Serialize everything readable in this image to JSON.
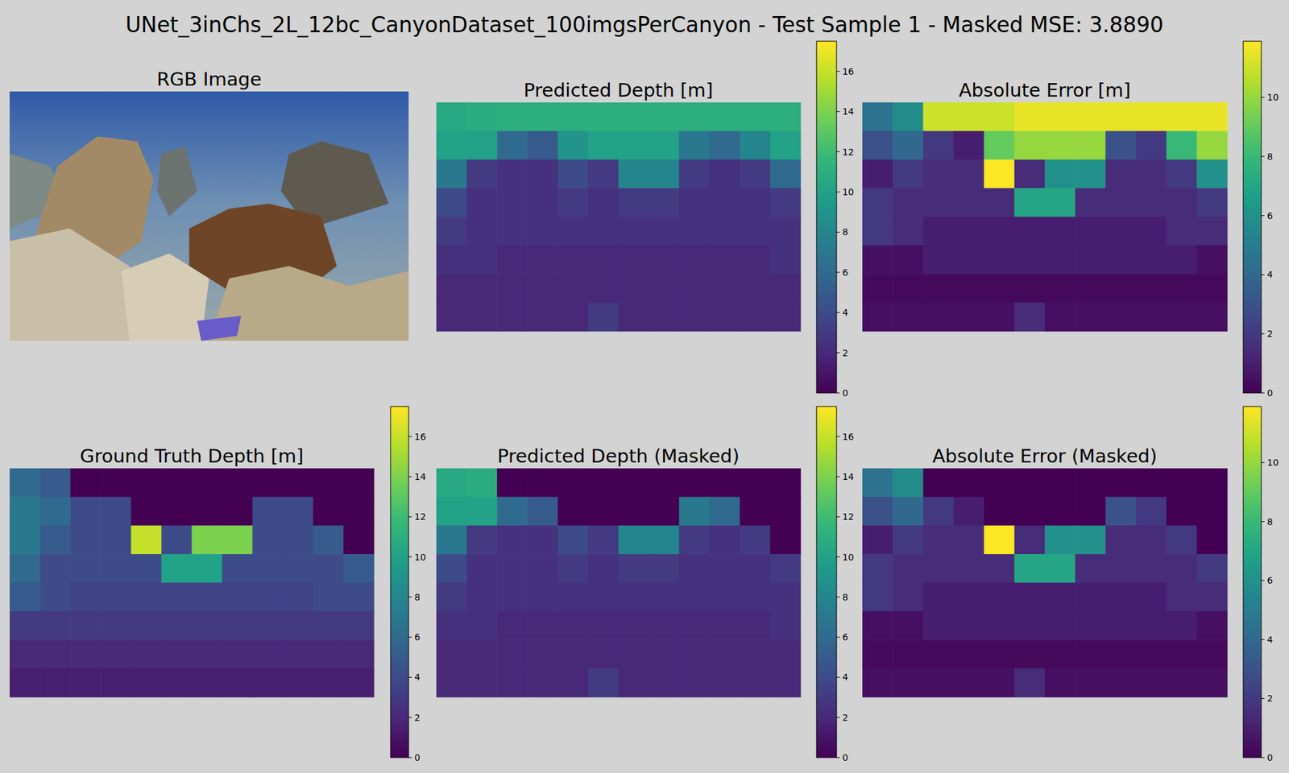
{
  "chart_data": {
    "type": "image_grid",
    "title": "UNet_3inChs_2L_12bc_CanyonDataset_100imgsPerCanyon - Test Sample 1 - Masked MSE: 3.8890",
    "panels": [
      {
        "type": "image",
        "title": "RGB Image"
      },
      {
        "type": "heatmap",
        "title": "Predicted Depth [m]",
        "cells": [
          [
            10.5,
            10.8,
            11,
            11,
            11,
            11,
            11,
            11,
            11,
            11,
            11,
            11
          ],
          [
            10,
            10,
            6,
            5,
            9,
            10,
            10,
            10,
            7,
            6,
            8,
            10
          ],
          [
            7,
            3,
            2.5,
            2.5,
            4,
            3,
            8,
            8,
            3,
            2.5,
            3,
            6
          ],
          [
            4,
            2.5,
            2.5,
            2.5,
            3,
            2.5,
            3,
            3,
            2.5,
            2.5,
            2.5,
            3
          ],
          [
            3,
            2.5,
            2.5,
            2.5,
            2.5,
            2.5,
            2.5,
            2.5,
            2.5,
            2.5,
            2.5,
            2.5
          ],
          [
            2.5,
            2.5,
            2,
            2,
            2,
            2,
            2,
            2,
            2,
            2,
            2,
            2.5
          ],
          [
            2,
            2,
            2,
            2,
            2,
            2,
            2,
            2,
            2,
            2,
            2,
            2
          ],
          [
            2,
            2,
            2,
            2,
            2,
            3,
            2,
            2,
            2,
            2,
            2,
            2
          ]
        ],
        "colorbar": {
          "range": [
            0,
            17.5
          ],
          "ticks": [
            0,
            2,
            4,
            6,
            8,
            10,
            12,
            14,
            16
          ]
        }
      },
      {
        "type": "heatmap",
        "title": "Absolute Error [m]",
        "cells": [
          [
            4.5,
            5.8,
            11,
            11,
            11,
            11.5,
            11.5,
            11.5,
            11.5,
            11.5,
            11.5,
            11.5
          ],
          [
            3,
            4,
            2,
            1,
            9,
            10,
            10,
            10,
            3,
            2,
            8,
            10
          ],
          [
            1,
            2,
            1.5,
            1.5,
            12,
            1.5,
            6,
            6,
            1.5,
            1.5,
            2,
            6
          ],
          [
            2,
            1.5,
            1.5,
            1.5,
            1.5,
            7,
            7,
            1.5,
            1.5,
            1.5,
            1.5,
            2
          ],
          [
            2,
            1.5,
            1,
            1,
            1,
            1,
            1,
            1,
            1,
            1,
            1.5,
            1.5
          ],
          [
            0.5,
            0.5,
            1,
            1,
            1,
            1,
            1,
            1,
            1,
            1,
            1,
            0.5
          ],
          [
            0.3,
            0.3,
            0.3,
            0.3,
            0.3,
            0.3,
            0.3,
            0.3,
            0.3,
            0.3,
            0.3,
            0.3
          ],
          [
            0.5,
            0.5,
            0.5,
            0.5,
            0.5,
            1.5,
            0.5,
            0.5,
            0.5,
            0.5,
            0.5,
            0.5
          ]
        ],
        "colorbar": {
          "range": [
            0,
            11.9
          ],
          "ticks": [
            0,
            2,
            4,
            6,
            8,
            10
          ]
        }
      },
      {
        "type": "heatmap",
        "title": "Ground Truth Depth [m]",
        "cells": [
          [
            6,
            5,
            0,
            0,
            0,
            0,
            0,
            0,
            0,
            0,
            0,
            0
          ],
          [
            7,
            6,
            4,
            4,
            0,
            0,
            0,
            0,
            4,
            4,
            0,
            0
          ],
          [
            7,
            5,
            4,
            4,
            16,
            4,
            14,
            14,
            4,
            4,
            5,
            0
          ],
          [
            6,
            4,
            4,
            4,
            4,
            10,
            10,
            4,
            4,
            4,
            4,
            5
          ],
          [
            5,
            4,
            3.5,
            3.5,
            3.5,
            3.5,
            3.5,
            3.5,
            3.5,
            3.5,
            4,
            4
          ],
          [
            3,
            3,
            3,
            3,
            3,
            3,
            3,
            3,
            3,
            3,
            3,
            3
          ],
          [
            2,
            2,
            2,
            2,
            2,
            2,
            2,
            2,
            2,
            2,
            2,
            2
          ],
          [
            1.5,
            1.5,
            1.5,
            1.5,
            1.5,
            1.5,
            1.5,
            1.5,
            1.5,
            1.5,
            1.5,
            1.5
          ]
        ],
        "colorbar": {
          "range": [
            0,
            17.5
          ],
          "ticks": [
            0,
            2,
            4,
            6,
            8,
            10,
            12,
            14,
            16
          ]
        }
      },
      {
        "type": "heatmap",
        "title": "Predicted Depth (Masked)",
        "cells": [
          [
            10.5,
            10.8,
            0,
            0,
            0,
            0,
            0,
            0,
            0,
            0,
            0,
            0
          ],
          [
            10,
            10,
            6,
            5,
            0,
            0,
            0,
            0,
            7,
            6,
            0,
            0
          ],
          [
            7,
            3,
            2.5,
            2.5,
            4,
            3,
            8,
            8,
            3,
            2.5,
            3,
            0
          ],
          [
            4,
            2.5,
            2.5,
            2.5,
            3,
            2.5,
            3,
            3,
            2.5,
            2.5,
            2.5,
            3
          ],
          [
            3,
            2.5,
            2.5,
            2.5,
            2.5,
            2.5,
            2.5,
            2.5,
            2.5,
            2.5,
            2.5,
            2.5
          ],
          [
            2.5,
            2.5,
            2,
            2,
            2,
            2,
            2,
            2,
            2,
            2,
            2,
            2.5
          ],
          [
            2,
            2,
            2,
            2,
            2,
            2,
            2,
            2,
            2,
            2,
            2,
            2
          ],
          [
            2,
            2,
            2,
            2,
            2,
            3,
            2,
            2,
            2,
            2,
            2,
            2
          ]
        ],
        "colorbar": {
          "range": [
            0,
            17.5
          ],
          "ticks": [
            0,
            2,
            4,
            6,
            8,
            10,
            12,
            14,
            16
          ]
        }
      },
      {
        "type": "heatmap",
        "title": "Absolute Error (Masked)",
        "cells": [
          [
            4.5,
            5.8,
            0,
            0,
            0,
            0,
            0,
            0,
            0,
            0,
            0,
            0
          ],
          [
            3,
            4,
            2,
            1,
            0,
            0,
            0,
            0,
            3,
            2,
            0,
            0
          ],
          [
            1,
            2,
            1.5,
            1.5,
            12,
            1.5,
            6,
            6,
            1.5,
            1.5,
            2,
            0
          ],
          [
            2,
            1.5,
            1.5,
            1.5,
            1.5,
            7,
            7,
            1.5,
            1.5,
            1.5,
            1.5,
            2
          ],
          [
            2,
            1.5,
            1,
            1,
            1,
            1,
            1,
            1,
            1,
            1,
            1.5,
            1.5
          ],
          [
            0.5,
            0.5,
            1,
            1,
            1,
            1,
            1,
            1,
            1,
            1,
            1,
            0.5
          ],
          [
            0.3,
            0.3,
            0.3,
            0.3,
            0.3,
            0.3,
            0.3,
            0.3,
            0.3,
            0.3,
            0.3,
            0.3
          ],
          [
            0.5,
            0.5,
            0.5,
            0.5,
            0.5,
            1.5,
            0.5,
            0.5,
            0.5,
            0.5,
            0.5,
            0.5
          ]
        ],
        "colorbar": {
          "range": [
            0,
            11.9
          ],
          "ticks": [
            0,
            2,
            4,
            6,
            8,
            10
          ]
        }
      }
    ]
  }
}
